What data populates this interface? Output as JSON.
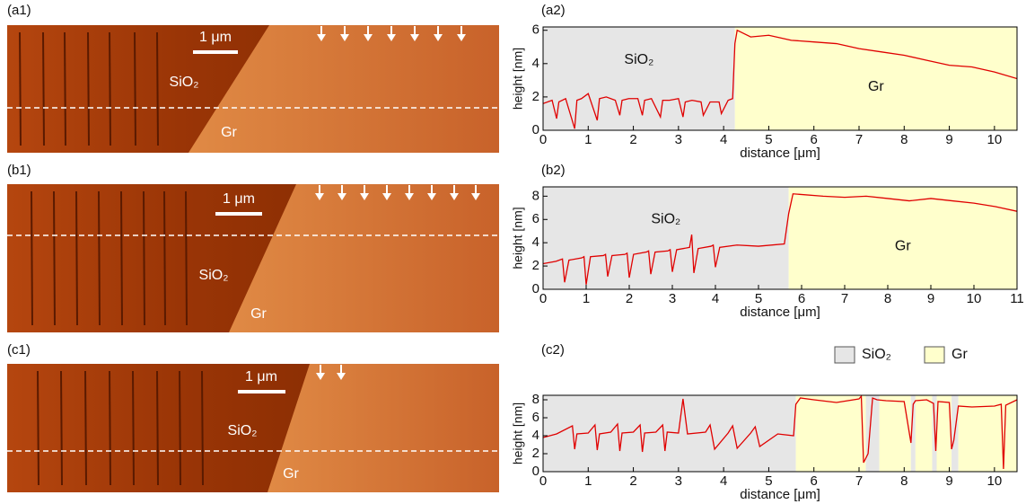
{
  "images": [
    {
      "label": "(a1)",
      "scale_bar": "1 μm",
      "texts": [
        "SiO₂",
        "Gr"
      ]
    },
    {
      "label": "(b1)",
      "scale_bar": "1 μm",
      "texts": [
        "SiO₂",
        "Gr"
      ]
    },
    {
      "label": "(c1)",
      "scale_bar": "1 μm",
      "texts": [
        "SiO₂",
        "Gr"
      ]
    }
  ],
  "chart_data": [
    {
      "type": "line",
      "title": "(a2)",
      "x_label": "distance [μm]",
      "y_label": "height [nm]",
      "x": [
        0,
        0.2,
        0.3,
        0.35,
        0.5,
        0.7,
        0.75,
        0.85,
        1.0,
        1.2,
        1.25,
        1.4,
        1.6,
        1.7,
        1.75,
        1.9,
        2.1,
        2.2,
        2.25,
        2.4,
        2.6,
        2.65,
        2.8,
        3.0,
        3.1,
        3.15,
        3.3,
        3.5,
        3.55,
        3.7,
        3.9,
        3.95,
        4.1,
        4.2,
        4.25,
        4.3,
        4.6,
        5.0,
        5.5,
        6.0,
        6.5,
        7.0,
        7.5,
        8.0,
        8.5,
        9.0,
        9.5,
        10.0,
        10.5
      ],
      "series": [
        {
          "color": "#e00000",
          "values": [
            1.6,
            1.8,
            0.7,
            1.7,
            1.9,
            0.1,
            1.8,
            1.9,
            2.2,
            0.6,
            1.9,
            2.0,
            1.8,
            0.9,
            1.8,
            1.9,
            1.9,
            0.9,
            1.8,
            1.9,
            0.8,
            1.8,
            1.8,
            1.9,
            0.8,
            1.7,
            1.8,
            1.7,
            0.9,
            1.7,
            1.7,
            1.0,
            1.8,
            1.9,
            5.2,
            6.0,
            5.6,
            5.7,
            5.4,
            5.3,
            5.2,
            4.9,
            4.7,
            4.5,
            4.2,
            3.9,
            3.8,
            3.5,
            3.1
          ]
        }
      ],
      "xlim": [
        0,
        10.5
      ],
      "ylim": [
        0,
        6.2
      ],
      "xticks": [
        0,
        1,
        2,
        3,
        4,
        5,
        6,
        7,
        8,
        9,
        10
      ],
      "yticks": [
        0,
        2,
        4,
        6
      ],
      "regions": [
        {
          "range": [
            0,
            4.25
          ],
          "color": "#e6e6e6",
          "label": "SiO₂"
        },
        {
          "range": [
            4.25,
            10.5
          ],
          "color": "#ffffcc",
          "label": "Gr"
        }
      ]
    },
    {
      "type": "line",
      "title": "(b2)",
      "x_label": "distance [μm]",
      "y_label": "height [nm]",
      "x": [
        0,
        0.3,
        0.45,
        0.5,
        0.6,
        0.9,
        0.95,
        1.0,
        1.1,
        1.4,
        1.45,
        1.5,
        1.6,
        1.9,
        1.95,
        2.0,
        2.1,
        2.4,
        2.45,
        2.5,
        2.6,
        2.9,
        2.95,
        3.0,
        3.1,
        3.4,
        3.45,
        3.5,
        3.6,
        3.9,
        3.95,
        4.0,
        4.1,
        4.5,
        5.0,
        5.6,
        5.7,
        5.8,
        6.5,
        7.0,
        7.5,
        8.0,
        8.5,
        9.0,
        9.5,
        10.0,
        10.5,
        11
      ],
      "series": [
        {
          "color": "#e00000",
          "values": [
            2.2,
            2.4,
            2.6,
            0.6,
            2.5,
            2.7,
            2.8,
            0.4,
            2.8,
            2.9,
            3.0,
            1.1,
            2.9,
            3.0,
            3.1,
            1.0,
            3.0,
            3.2,
            3.3,
            1.3,
            3.2,
            3.3,
            3.4,
            1.5,
            3.4,
            3.6,
            4.7,
            1.4,
            3.5,
            3.7,
            3.8,
            1.9,
            3.6,
            3.8,
            3.7,
            3.9,
            6.5,
            8.2,
            8.0,
            7.9,
            8.0,
            7.8,
            7.6,
            7.8,
            7.6,
            7.4,
            7.1,
            6.7
          ]
        }
      ],
      "xlim": [
        0,
        11
      ],
      "ylim": [
        0,
        8.8
      ],
      "xticks": [
        0,
        1,
        2,
        3,
        4,
        5,
        6,
        7,
        8,
        9,
        10,
        11
      ],
      "yticks": [
        0,
        2,
        4,
        6,
        8
      ],
      "regions": [
        {
          "range": [
            0,
            5.7
          ],
          "color": "#e6e6e6",
          "label": "SiO₂"
        },
        {
          "range": [
            5.7,
            11
          ],
          "color": "#ffffcc",
          "label": "Gr"
        }
      ]
    },
    {
      "type": "line",
      "title": "(c2)",
      "x_label": "distance [μm]",
      "y_label": "height [nm]",
      "x": [
        0,
        0.3,
        0.65,
        0.7,
        0.75,
        1.0,
        1.15,
        1.2,
        1.25,
        1.5,
        1.65,
        1.7,
        1.75,
        2.0,
        2.15,
        2.2,
        2.25,
        2.5,
        2.65,
        2.7,
        2.75,
        3.0,
        3.1,
        3.2,
        3.6,
        3.7,
        3.8,
        4.1,
        4.2,
        4.3,
        4.6,
        4.7,
        4.8,
        5.2,
        5.55,
        5.6,
        5.7,
        6.0,
        6.5,
        7.0,
        7.05,
        7.1,
        7.2,
        7.3,
        7.4,
        7.6,
        8.0,
        8.15,
        8.2,
        8.25,
        8.5,
        8.65,
        8.7,
        8.75,
        9.0,
        9.05,
        9.1,
        9.2,
        9.5,
        10.0,
        10.15,
        10.2,
        10.25,
        10.5
      ],
      "series": [
        {
          "color": "#e00000",
          "values": [
            3.8,
            4.2,
            5.1,
            2.5,
            4.2,
            4.3,
            5.2,
            2.4,
            4.2,
            4.4,
            5.3,
            2.3,
            4.3,
            4.4,
            5.2,
            2.2,
            4.3,
            4.4,
            5.2,
            2.3,
            4.4,
            4.3,
            8.1,
            4.2,
            4.4,
            5.2,
            2.5,
            4.3,
            5.1,
            2.6,
            4.3,
            5.0,
            2.8,
            4.2,
            4.0,
            7.5,
            8.2,
            8.0,
            7.7,
            8.1,
            8.4,
            1.0,
            2.0,
            8.2,
            8.0,
            7.9,
            7.8,
            3.2,
            7.5,
            7.9,
            8.0,
            7.6,
            2.3,
            7.8,
            7.7,
            2.5,
            3.5,
            7.3,
            7.2,
            7.3,
            7.5,
            0.3,
            7.4,
            8.0
          ]
        }
      ],
      "xlim": [
        0,
        10.5
      ],
      "ylim": [
        0,
        8.5
      ],
      "xticks": [
        0,
        1,
        2,
        3,
        4,
        5,
        6,
        7,
        8,
        9,
        10
      ],
      "yticks": [
        0,
        2,
        4,
        6,
        8
      ],
      "regions": [
        {
          "range": [
            0,
            5.6
          ],
          "color": "#e6e6e6"
        },
        {
          "range": [
            5.6,
            7.15
          ],
          "color": "#ffffcc"
        },
        {
          "range": [
            7.15,
            7.45
          ],
          "color": "#e6e6e6"
        },
        {
          "range": [
            7.45,
            8.15
          ],
          "color": "#ffffcc"
        },
        {
          "range": [
            8.15,
            8.25
          ],
          "color": "#e6e6e6"
        },
        {
          "range": [
            8.25,
            8.62
          ],
          "color": "#ffffcc"
        },
        {
          "range": [
            8.62,
            8.72
          ],
          "color": "#e6e6e6"
        },
        {
          "range": [
            8.72,
            9.05
          ],
          "color": "#ffffcc"
        },
        {
          "range": [
            9.05,
            9.2
          ],
          "color": "#e6e6e6"
        },
        {
          "range": [
            9.2,
            10.5
          ],
          "color": "#ffffcc"
        }
      ],
      "legend": [
        {
          "name": "SiO₂",
          "color": "#e6e6e6"
        },
        {
          "name": "Gr",
          "color": "#ffffcc"
        }
      ]
    }
  ]
}
